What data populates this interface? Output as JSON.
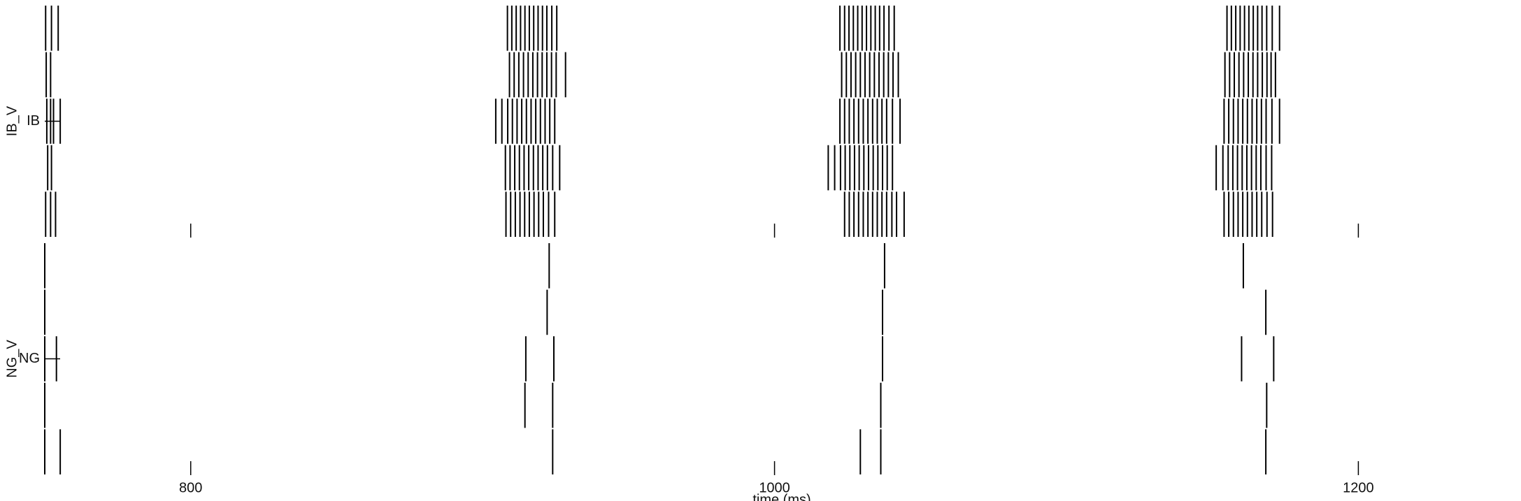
{
  "chart_data": [
    {
      "type": "raster",
      "ylabel": "IB_V",
      "group_label": "IB",
      "color": "#000000",
      "xlim": [
        750,
        1255
      ],
      "xticks": [
        800,
        1000,
        1200
      ],
      "rows": [
        [
          750.3,
          752.3,
          754.6,
          908.5,
          910,
          911.5,
          913,
          914.5,
          916,
          917.5,
          919,
          920.5,
          922,
          923.7,
          925.4,
          1022.4,
          1024,
          1025.5,
          1027,
          1028.5,
          1030,
          1031.5,
          1033,
          1034.5,
          1036,
          1037.5,
          1039.2,
          1041,
          1155,
          1156.5,
          1158,
          1159.5,
          1161,
          1162.5,
          1164,
          1165.5,
          1167,
          1168.6,
          1170.5,
          1173
        ],
        [
          750.5,
          752,
          909.2,
          910.8,
          912.4,
          914,
          915.6,
          917.2,
          918.8,
          920.4,
          922,
          923.6,
          925.2,
          928.4,
          1023,
          1024.6,
          1026.2,
          1027.8,
          1029.4,
          1031,
          1032.6,
          1034.2,
          1035.8,
          1037.4,
          1039,
          1040.6,
          1042.4,
          1154.3,
          1155.9,
          1157.5,
          1159.1,
          1160.7,
          1162.3,
          1163.9,
          1165.5,
          1167.1,
          1168.7,
          1170.1,
          1171.6
        ],
        [
          750.7,
          752,
          753,
          755.3,
          904.5,
          906.6,
          908.6,
          910.2,
          911.8,
          913.4,
          915,
          916.6,
          918.2,
          919.8,
          921.4,
          923,
          924.7,
          1022.4,
          1024,
          1025.6,
          1027.2,
          1028.8,
          1030.4,
          1032,
          1033.6,
          1035.2,
          1036.8,
          1038.4,
          1040.4,
          1043,
          1154,
          1155.6,
          1157.2,
          1158.8,
          1160.4,
          1162,
          1163.6,
          1165.2,
          1166.8,
          1168.4,
          1170.4,
          1173
        ],
        [
          751,
          752.3,
          907.8,
          909.4,
          911,
          912.6,
          914.2,
          915.8,
          917.4,
          919,
          920.6,
          922.2,
          924,
          926.4,
          1018.4,
          1020.6,
          1022.6,
          1024.2,
          1025.8,
          1027.4,
          1029,
          1030.6,
          1032.2,
          1033.8,
          1035.4,
          1037,
          1038.6,
          1040.4,
          1151.3,
          1153.6,
          1155.4,
          1157,
          1158.6,
          1160.2,
          1161.8,
          1163.4,
          1165,
          1166.6,
          1168.4,
          1170.3
        ],
        [
          750.3,
          752,
          753.7,
          908,
          909.6,
          911.2,
          912.8,
          914.4,
          916,
          917.6,
          919.2,
          920.8,
          922.6,
          924.7,
          1024,
          1025.6,
          1027.2,
          1028.8,
          1030.4,
          1032,
          1033.6,
          1035.2,
          1036.8,
          1038.4,
          1040.2,
          1041.8,
          1044.4,
          1154,
          1155.6,
          1157.2,
          1158.8,
          1160.4,
          1162,
          1163.6,
          1165.2,
          1166.9,
          1168.7,
          1170.6
        ]
      ]
    },
    {
      "type": "raster",
      "ylabel": "NG_V",
      "group_label": "NG",
      "color": "#000000",
      "xlabel": "time (ms)",
      "xlim": [
        750,
        1255
      ],
      "xticks": [
        800,
        1000,
        1200
      ],
      "rows": [
        [
          750,
          922.8,
          1037.7,
          1160.6
        ],
        [
          750,
          922.1,
          1037,
          1168.3
        ],
        [
          750,
          754,
          914.8,
          924.4,
          1037,
          1160,
          1171
        ],
        [
          750,
          914.5,
          924,
          1036.4,
          1168.6
        ],
        [
          750,
          755.3,
          924,
          1029.4,
          1036.4,
          1168.3
        ]
      ]
    }
  ]
}
